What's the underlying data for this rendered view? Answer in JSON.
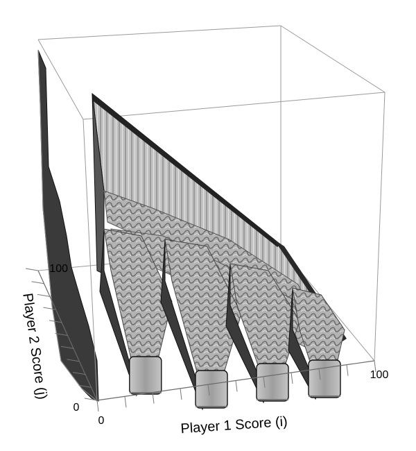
{
  "chart_data": {
    "type": "surface3d",
    "xlabel": "Player 1 Score (i)",
    "ylabel": "Player 2 Score (j)",
    "zlabel": "",
    "x_ticks": [
      "0",
      "100"
    ],
    "y_ticks": [
      "0",
      "100"
    ],
    "xlim": [
      0,
      100
    ],
    "ylim": [
      0,
      100
    ],
    "surface_color": "#bdbdbd",
    "shadow_color": "#3a3a3a",
    "edge_color": "#111111",
    "grid": false
  }
}
